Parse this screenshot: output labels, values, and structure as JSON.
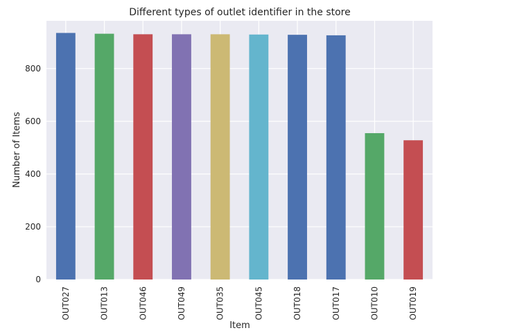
{
  "chart_data": {
    "type": "bar",
    "title": "Different types of outlet identifier in the store",
    "xlabel": "Item",
    "ylabel": "Number of Items",
    "categories": [
      "OUT027",
      "OUT013",
      "OUT046",
      "OUT049",
      "OUT035",
      "OUT045",
      "OUT018",
      "OUT017",
      "OUT010",
      "OUT019"
    ],
    "values": [
      935,
      932,
      930,
      930,
      930,
      929,
      928,
      926,
      555,
      528
    ],
    "colors": [
      "#4c72b0",
      "#55a868",
      "#c44e52",
      "#8172b2",
      "#ccb974",
      "#64b5cd",
      "#4c72b0",
      "#4c72b0",
      "#55a868",
      "#c44e52"
    ],
    "yticks": [
      0,
      200,
      400,
      600,
      800
    ],
    "ylim": [
      0,
      981
    ],
    "grid": true,
    "background": "#eaeaf2",
    "legend": false
  }
}
